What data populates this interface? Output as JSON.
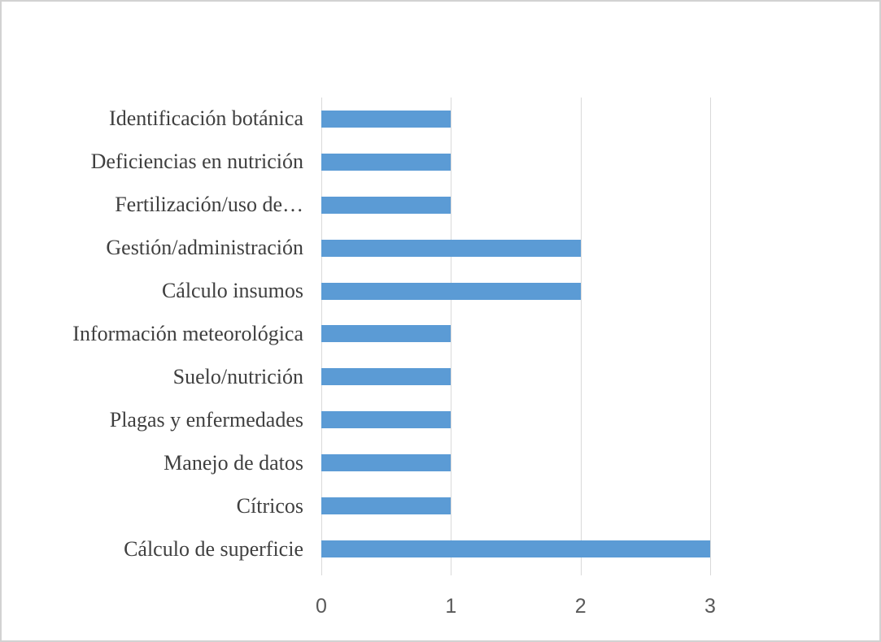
{
  "chart_data": {
    "type": "bar",
    "orientation": "horizontal",
    "title": "",
    "xlabel": "",
    "ylabel": "",
    "categories": [
      "Identificación botánica",
      "Deficiencias en nutrición",
      "Fertilización/uso de…",
      "Gestión/administración",
      "Cálculo insumos",
      "Información meteorológica",
      "Suelo/nutrición",
      "Plagas y enfermedades",
      "Manejo de datos",
      "Cítricos",
      "Cálculo de superficie"
    ],
    "values": [
      1,
      1,
      1,
      2,
      2,
      1,
      1,
      1,
      1,
      1,
      3
    ],
    "x_ticks": [
      "0",
      "1",
      "2",
      "3"
    ],
    "xlim": [
      0,
      3
    ],
    "grid": true,
    "legend_position": "none",
    "colors": {
      "bar": "#5b9bd5",
      "gridline": "#d9d9d9",
      "category_label": "#3f3f3f",
      "tick_label": "#595959",
      "background": "#ffffff",
      "canvas_border": "#d2d2d2"
    }
  }
}
